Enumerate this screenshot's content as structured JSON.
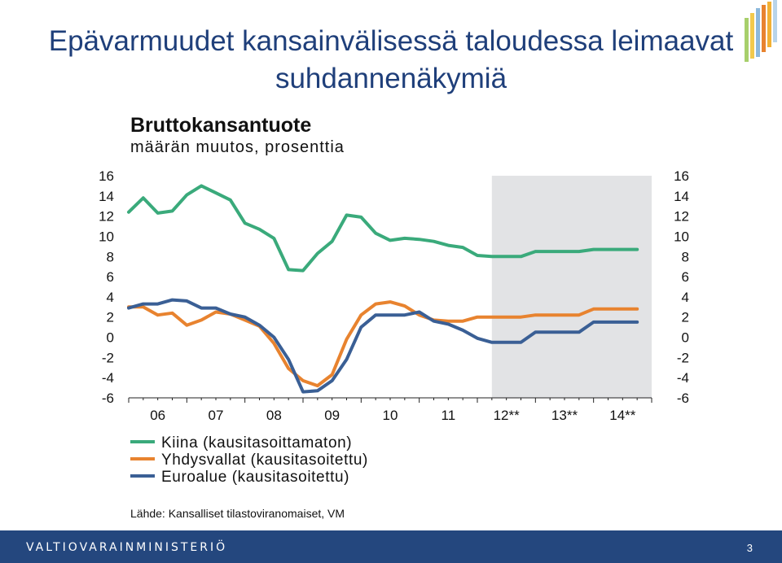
{
  "slide": {
    "title_line1": "Epävarmuudet kansainvälisessä taloudessa leimaavat",
    "title_line2": "suhdannenäkymiä",
    "footer": "VALTIOVARAINMINISTERIÖ",
    "page_number": "3",
    "source": "Lähde: Kansalliset tilastoviranomaiset, VM",
    "brand_color": "#24477e"
  },
  "chart_data": {
    "type": "line",
    "title": "Bruttokansantuote",
    "subtitle": "määrän muutos, prosenttia",
    "ylim": [
      -6,
      16
    ],
    "y_ticks": [
      "16",
      "14",
      "12",
      "10",
      "8",
      "6",
      "4",
      "2",
      "0",
      "-2",
      "-4",
      "-6"
    ],
    "x_range": [
      2006.0,
      2015.0
    ],
    "x_tick_labels": [
      "06",
      "07",
      "08",
      "09",
      "10",
      "11",
      "12**",
      "13**",
      "14**"
    ],
    "forecast_start": 2012.25,
    "grid": false,
    "legend_position": "bottom",
    "colors": {
      "Kiina": "#3aaa7b",
      "Yhdysvallat": "#e8832f",
      "Euroalue": "#3a5f95",
      "forecast_shade": "#e2e3e5"
    },
    "series": [
      {
        "name": "Kiina (kausitasoittamaton)",
        "color": "#3aaa7b",
        "x": [
          2006.0,
          2006.25,
          2006.5,
          2006.75,
          2007.0,
          2007.25,
          2007.5,
          2007.75,
          2008.0,
          2008.25,
          2008.5,
          2008.75,
          2009.0,
          2009.25,
          2009.5,
          2009.75,
          2010.0,
          2010.25,
          2010.5,
          2010.75,
          2011.0,
          2011.25,
          2011.5,
          2011.75,
          2012.0,
          2012.25,
          2012.5,
          2012.75,
          2013.0,
          2013.25,
          2013.5,
          2013.75,
          2014.0,
          2014.25,
          2014.5,
          2014.75
        ],
        "values": [
          12.4,
          13.8,
          12.3,
          12.5,
          14.1,
          15.0,
          14.3,
          13.6,
          11.3,
          10.7,
          9.8,
          6.7,
          6.6,
          8.3,
          9.5,
          12.1,
          11.9,
          10.3,
          9.6,
          9.8,
          9.7,
          9.5,
          9.1,
          8.9,
          8.1,
          8.0,
          8.0,
          8.0,
          8.5,
          8.5,
          8.5,
          8.5,
          8.7,
          8.7,
          8.7,
          8.7
        ]
      },
      {
        "name": "Yhdysvallat (kausitasoitettu)",
        "color": "#e8832f",
        "x": [
          2006.0,
          2006.25,
          2006.5,
          2006.75,
          2007.0,
          2007.25,
          2007.5,
          2007.75,
          2008.0,
          2008.25,
          2008.5,
          2008.75,
          2009.0,
          2009.25,
          2009.5,
          2009.75,
          2010.0,
          2010.25,
          2010.5,
          2010.75,
          2011.0,
          2011.25,
          2011.5,
          2011.75,
          2012.0,
          2012.25,
          2012.5,
          2012.75,
          2013.0,
          2013.25,
          2013.5,
          2013.75,
          2014.0,
          2014.25,
          2014.5,
          2014.75
        ],
        "values": [
          3.0,
          3.0,
          2.2,
          2.4,
          1.2,
          1.7,
          2.5,
          2.3,
          1.7,
          1.1,
          -0.6,
          -3.1,
          -4.3,
          -4.8,
          -3.7,
          -0.2,
          2.2,
          3.3,
          3.5,
          3.1,
          2.2,
          1.7,
          1.6,
          1.6,
          2.0,
          2.0,
          2.0,
          2.0,
          2.2,
          2.2,
          2.2,
          2.2,
          2.8,
          2.8,
          2.8,
          2.8
        ]
      },
      {
        "name": "Euroalue (kausitasoitettu)",
        "color": "#3a5f95",
        "x": [
          2006.0,
          2006.25,
          2006.5,
          2006.75,
          2007.0,
          2007.25,
          2007.5,
          2007.75,
          2008.0,
          2008.25,
          2008.5,
          2008.75,
          2009.0,
          2009.25,
          2009.5,
          2009.75,
          2010.0,
          2010.25,
          2010.5,
          2010.75,
          2011.0,
          2011.25,
          2011.5,
          2011.75,
          2012.0,
          2012.25,
          2012.5,
          2012.75,
          2013.0,
          2013.25,
          2013.5,
          2013.75,
          2014.0,
          2014.25,
          2014.5,
          2014.75
        ],
        "values": [
          2.9,
          3.3,
          3.3,
          3.7,
          3.6,
          2.9,
          2.9,
          2.3,
          2.0,
          1.2,
          0.0,
          -2.2,
          -5.4,
          -5.3,
          -4.3,
          -2.2,
          1.0,
          2.2,
          2.2,
          2.2,
          2.5,
          1.6,
          1.3,
          0.7,
          -0.1,
          -0.5,
          -0.5,
          -0.5,
          0.5,
          0.5,
          0.5,
          0.5,
          1.5,
          1.5,
          1.5,
          1.5
        ]
      }
    ]
  }
}
